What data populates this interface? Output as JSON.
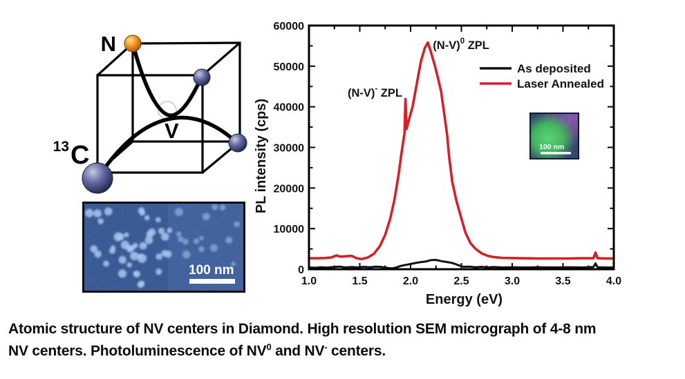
{
  "figure": {
    "caption": {
      "line1": "Atomic structure of NV centers in Diamond. High resolution SEM micrograph of 4-8 nm",
      "line2_parts": [
        {
          "t": "NV centers. Photoluminescence of NV"
        },
        {
          "t": "0",
          "sup": true
        },
        {
          "t": " and NV"
        },
        {
          "t": "-",
          "sup": true
        },
        {
          "t": " centers."
        }
      ]
    },
    "cube": {
      "labels": {
        "nitrogen": "N",
        "carbon": "C",
        "isotope": "13",
        "vacancy": "V"
      },
      "nitrogen_color": "#f59a23",
      "carbon_color": "#676da3",
      "edge_color": "#000000",
      "bond_color": "#000000"
    },
    "sem": {
      "scale_label": "100 nm",
      "background_color": "#1d3e7e",
      "dot_color": "#a8c6ef"
    },
    "inset": {
      "scale_label": "100 nm",
      "green_color": "#2fa84f",
      "purple_color": "#5c2d82",
      "background_color": "#1b2a5e"
    }
  },
  "chart_data": {
    "type": "line",
    "title": "",
    "xlabel": "Energy (eV)",
    "ylabel": "PL intensity (cps)",
    "xlim": [
      1.0,
      4.0
    ],
    "ylim": [
      0,
      60000
    ],
    "grid": false,
    "x_major_ticks": [
      1.0,
      1.5,
      2.0,
      2.5,
      3.0,
      3.5,
      4.0
    ],
    "x_tick_labels": [
      "1.0",
      "1.5",
      "2.0",
      "2.5",
      "3.0",
      "3.5",
      "4.0"
    ],
    "x_minor_step": 0.25,
    "y_major_ticks": [
      0,
      10000,
      20000,
      30000,
      40000,
      50000,
      60000
    ],
    "y_tick_labels": [
      "0",
      "10000",
      "20000",
      "30000",
      "40000",
      "50000",
      "60000"
    ],
    "y_minor_step": 5000,
    "legend": {
      "position": "upper right",
      "entries": [
        {
          "name": "As deposited",
          "color": "#111111"
        },
        {
          "name": "Laser Annealed",
          "color": "#d42026"
        }
      ]
    },
    "annotations": [
      {
        "id": "nv0-zpl",
        "x": 2.22,
        "y": 54200,
        "anchor": "start",
        "parts": [
          {
            "t": "(N-V)"
          },
          {
            "t": "0",
            "sup": true
          },
          {
            "t": " ZPL"
          }
        ]
      },
      {
        "id": "nv-minus-zpl",
        "x": 1.381,
        "y": 42500,
        "anchor": "start",
        "parts": [
          {
            "t": "(N-V)"
          },
          {
            "t": "-",
            "sup": true
          },
          {
            "t": " ZPL"
          }
        ]
      }
    ],
    "series": [
      {
        "name": "As deposited",
        "color": "#111111",
        "width": 3,
        "points": [
          [
            1.0,
            450
          ],
          [
            1.06,
            350
          ],
          [
            1.12,
            500
          ],
          [
            1.18,
            400
          ],
          [
            1.24,
            550
          ],
          [
            1.3,
            650
          ],
          [
            1.36,
            450
          ],
          [
            1.42,
            550
          ],
          [
            1.48,
            450
          ],
          [
            1.54,
            600
          ],
          [
            1.6,
            500
          ],
          [
            1.66,
            650
          ],
          [
            1.72,
            550
          ],
          [
            1.78,
            300
          ],
          [
            1.82,
            200
          ],
          [
            1.86,
            450
          ],
          [
            1.9,
            800
          ],
          [
            1.95,
            1050
          ],
          [
            2.0,
            1300
          ],
          [
            2.05,
            1550
          ],
          [
            2.1,
            1750
          ],
          [
            2.15,
            1900
          ],
          [
            2.2,
            2250
          ],
          [
            2.25,
            2300
          ],
          [
            2.3,
            2000
          ],
          [
            2.35,
            1800
          ],
          [
            2.4,
            1600
          ],
          [
            2.44,
            1300
          ],
          [
            2.48,
            900
          ],
          [
            2.52,
            600
          ],
          [
            2.58,
            650
          ],
          [
            2.64,
            500
          ],
          [
            2.7,
            600
          ],
          [
            2.76,
            450
          ],
          [
            2.82,
            550
          ],
          [
            2.9,
            450
          ],
          [
            3.0,
            500
          ],
          [
            3.1,
            450
          ],
          [
            3.25,
            500
          ],
          [
            3.4,
            450
          ],
          [
            3.55,
            500
          ],
          [
            3.7,
            450
          ],
          [
            3.8,
            550
          ],
          [
            3.82,
            1450
          ],
          [
            3.84,
            500
          ],
          [
            3.92,
            450
          ],
          [
            4.0,
            430
          ]
        ]
      },
      {
        "name": "Laser Annealed",
        "color": "#d42026",
        "width": 3.6,
        "points": [
          [
            1.0,
            2700
          ],
          [
            1.08,
            2700
          ],
          [
            1.15,
            2750
          ],
          [
            1.22,
            2900
          ],
          [
            1.27,
            3400
          ],
          [
            1.31,
            3100
          ],
          [
            1.36,
            3200
          ],
          [
            1.42,
            3300
          ],
          [
            1.47,
            2700
          ],
          [
            1.52,
            2500
          ],
          [
            1.58,
            2900
          ],
          [
            1.64,
            3800
          ],
          [
            1.7,
            5800
          ],
          [
            1.75,
            8500
          ],
          [
            1.8,
            12500
          ],
          [
            1.84,
            17000
          ],
          [
            1.88,
            23000
          ],
          [
            1.91,
            28500
          ],
          [
            1.94,
            33500
          ],
          [
            1.95,
            41900
          ],
          [
            1.96,
            34500
          ],
          [
            1.98,
            36500
          ],
          [
            2.02,
            40000
          ],
          [
            2.06,
            45500
          ],
          [
            2.1,
            51000
          ],
          [
            2.14,
            54500
          ],
          [
            2.17,
            55800
          ],
          [
            2.2,
            53500
          ],
          [
            2.24,
            50000
          ],
          [
            2.27,
            47000
          ],
          [
            2.3,
            43800
          ],
          [
            2.33,
            38500
          ],
          [
            2.36,
            33000
          ],
          [
            2.38,
            27500
          ],
          [
            2.41,
            21500
          ],
          [
            2.45,
            17000
          ],
          [
            2.5,
            12500
          ],
          [
            2.54,
            9000
          ],
          [
            2.59,
            6400
          ],
          [
            2.64,
            5000
          ],
          [
            2.7,
            3900
          ],
          [
            2.76,
            3300
          ],
          [
            2.82,
            3000
          ],
          [
            2.9,
            2800
          ],
          [
            3.0,
            2750
          ],
          [
            3.1,
            2700
          ],
          [
            3.25,
            2650
          ],
          [
            3.4,
            2650
          ],
          [
            3.55,
            2650
          ],
          [
            3.7,
            2700
          ],
          [
            3.8,
            2700
          ],
          [
            3.82,
            4100
          ],
          [
            3.84,
            2700
          ],
          [
            3.92,
            2650
          ],
          [
            4.0,
            2650
          ]
        ]
      }
    ]
  }
}
